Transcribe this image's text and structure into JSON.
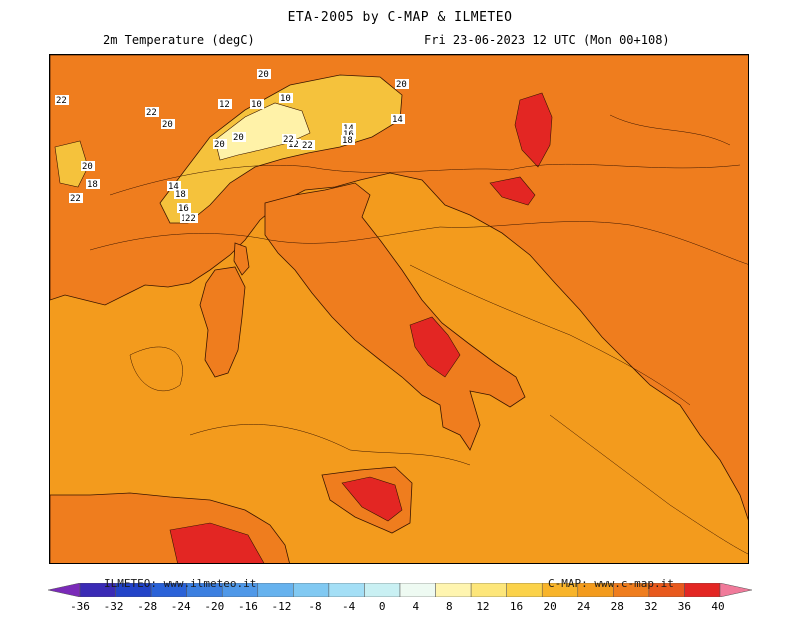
{
  "header": {
    "title": "ETA-2005 by C-MAP & ILMETEO",
    "field": "2m Temperature (degC)",
    "valid_time": "Fri 23-06-2023 12 UTC (Mon 00+108)"
  },
  "colors": {
    "ocean": "#f39b1d",
    "land_warm": "#ef7d1e",
    "land_hot": "#e8591d",
    "land_very_hot": "#e32623",
    "alps_cool": "#f5c23c",
    "alps_cold": "#fff2a8"
  },
  "contour_labels": [
    "22",
    "22",
    "20",
    "20",
    "20",
    "20",
    "20",
    "18",
    "14",
    "12",
    "10",
    "10",
    "20",
    "12",
    "22",
    "22",
    "14",
    "16",
    "18",
    "14",
    "18",
    "16",
    "18",
    "22",
    "22"
  ],
  "colorbar": {
    "ticks": [
      "-36",
      "-32",
      "-28",
      "-24",
      "-20",
      "-16",
      "-12",
      "-8",
      "-4",
      "0",
      "4",
      "8",
      "12",
      "16",
      "20",
      "24",
      "28",
      "32",
      "36",
      "40"
    ],
    "colors": [
      "#7a2ab8",
      "#3a2bb5",
      "#2344c8",
      "#2a62d8",
      "#3c7fe0",
      "#4f98e8",
      "#66b2ee",
      "#81c9f2",
      "#a4dff6",
      "#c9f0f3",
      "#eefaf2",
      "#fff5b0",
      "#fde67a",
      "#fbd24a",
      "#f8b42a",
      "#f39b1d",
      "#ef7d1e",
      "#e8591d",
      "#e32623",
      "#f07a9a"
    ],
    "left_watermark": "ILMETEO: www.ilmeteo.it",
    "right_watermark": "C-MAP: www.c-map.it"
  }
}
